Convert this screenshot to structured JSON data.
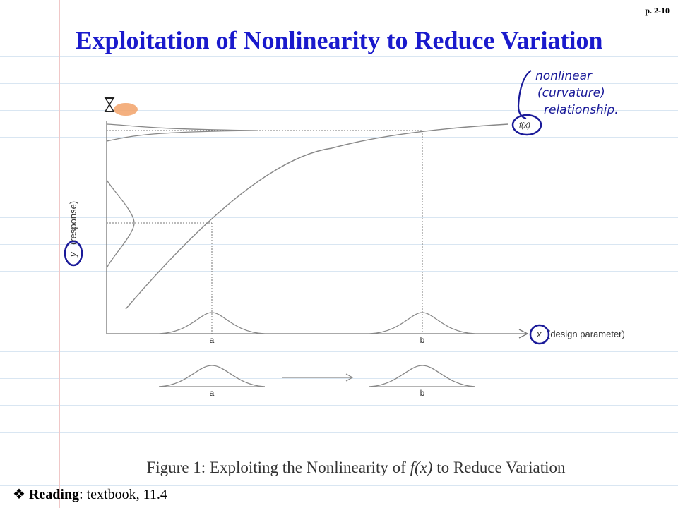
{
  "page_number": "p. 2-10",
  "title": "Exploitation of Nonlinearity to Reduce Variation",
  "figure": {
    "y_axis_label_var": "y",
    "y_axis_label_text": "(response)",
    "x_axis_label_var": "x",
    "x_axis_label_text": "(design parameter)",
    "curve_label": "f(x)",
    "tick_a": "a",
    "tick_b": "b",
    "bottom_a": "a",
    "bottom_b": "b"
  },
  "annotation": {
    "line1": "nonlinear",
    "line2": "(curvature)",
    "line3": "relationship."
  },
  "caption": {
    "prefix": "Figure 1: Exploiting the Nonlinearity of ",
    "math": "f(x)",
    "suffix": " to Reduce Variation"
  },
  "reading": {
    "bullet": "❖",
    "label": "Reading",
    "text": ": textbook, 11.4"
  },
  "colors": {
    "title": "#1a1acc",
    "ink": "#1a1a99",
    "figure_line": "#777777"
  },
  "icons": [
    "hourglass-cursor-icon"
  ]
}
